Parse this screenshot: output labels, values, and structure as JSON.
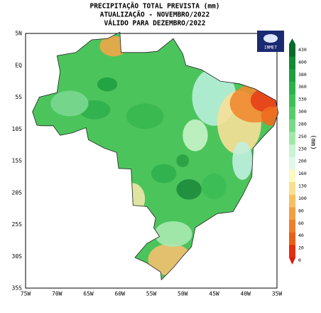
{
  "title": [
    "PRECIPITAÇÃO TOTAL PREVISTA (mm)",
    "ATUALIZAÇÃO - NOVEMBRO/2022",
    "VÁLIDO PARA DEZEMBRO/2022"
  ],
  "logo": "INMET",
  "lon_labels": [
    "75W",
    "70W",
    "65W",
    "60W",
    "55W",
    "50W",
    "45W",
    "40W",
    "35W"
  ],
  "lat_labels": [
    "5N",
    "EQ",
    "5S",
    "10S",
    "15S",
    "20S",
    "25S",
    "30S",
    "35S"
  ],
  "colorbar": {
    "unit": "(mm)",
    "labels": [
      "430",
      "400",
      "380",
      "360",
      "330",
      "300",
      "280",
      "250",
      "230",
      "200",
      "160",
      "130",
      "100",
      "80",
      "60",
      "40",
      "20",
      "0"
    ]
  }
}
